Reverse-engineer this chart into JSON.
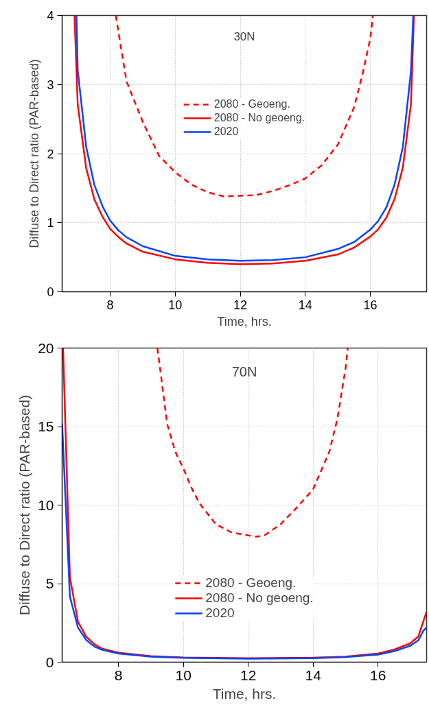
{
  "chart_data": [
    {
      "type": "line",
      "xlabel": "Time, hrs.",
      "ylabel": "Diffuse to Direct ratio (PAR-based)",
      "annotations": [
        "30N"
      ],
      "xlim": [
        6.52,
        17.73
      ],
      "ylim": [
        0,
        4
      ],
      "xticks": [
        8,
        10,
        12,
        14,
        16
      ],
      "yticks": [
        0,
        1,
        2,
        3,
        4
      ],
      "grid": true,
      "legend": "top",
      "series": [
        {
          "name": "2080 - Geoeng.",
          "color": "#ff0000",
          "line_style": "dashed",
          "x": [
            8.17,
            8.5,
            9,
            9.5,
            10,
            10.5,
            11,
            11.5,
            12,
            12.5,
            13,
            13.5,
            14,
            14.5,
            15,
            15.5,
            15.75,
            16,
            16.08
          ],
          "values": [
            4,
            3.05,
            2.46,
            1.97,
            1.73,
            1.55,
            1.44,
            1.38,
            1.39,
            1.4,
            1.46,
            1.54,
            1.64,
            1.83,
            2.13,
            2.67,
            3.13,
            3.67,
            4
          ]
        },
        {
          "name": "2080 - No geoeng.",
          "color": "#ff0000",
          "line_style": "solid",
          "x": [
            6.9,
            7.0,
            7.26,
            7.51,
            7.77,
            8.0,
            8.26,
            8.5,
            9,
            10,
            11,
            12,
            13,
            14,
            15,
            15.5,
            16,
            16.25,
            16.5,
            16.75,
            17,
            17.25,
            17.34
          ],
          "values": [
            4,
            2.71,
            1.79,
            1.34,
            1.08,
            0.91,
            0.79,
            0.7,
            0.58,
            0.47,
            0.42,
            0.4,
            0.41,
            0.45,
            0.54,
            0.64,
            0.8,
            0.91,
            1.08,
            1.35,
            1.8,
            2.72,
            4
          ]
        },
        {
          "name": "2020",
          "color": "#0044ff",
          "line_style": "solid",
          "x": [
            6.96,
            7.0,
            7.26,
            7.51,
            7.77,
            8.0,
            8.25,
            8.5,
            9,
            10,
            11,
            12,
            13,
            14,
            15,
            15.5,
            16,
            16.25,
            16.5,
            16.75,
            17,
            17.25,
            17.32
          ],
          "values": [
            4,
            3.21,
            2.1,
            1.55,
            1.23,
            1.03,
            0.89,
            0.79,
            0.66,
            0.52,
            0.47,
            0.45,
            0.46,
            0.5,
            0.62,
            0.72,
            0.9,
            1.03,
            1.23,
            1.56,
            2.1,
            3.2,
            4
          ]
        }
      ]
    },
    {
      "type": "line",
      "xlabel": "Time, hrs.",
      "ylabel": "Diffuse to Direct ratio (PAR-based)",
      "annotations": [
        "70N"
      ],
      "xlim": [
        6.26,
        17.5
      ],
      "ylim": [
        0,
        20
      ],
      "xticks": [
        8,
        10,
        12,
        14,
        16
      ],
      "yticks": [
        0,
        5,
        10,
        15,
        20
      ],
      "grid": true,
      "legend": "bottom",
      "series": [
        {
          "name": "2080 - Geoeng.",
          "color": "#ff0000",
          "line_style": "dashed",
          "x": [
            9.2,
            9.5,
            9.75,
            10,
            10.25,
            10.5,
            11,
            11.5,
            12,
            12.25,
            12.5,
            13,
            13.5,
            14,
            14.5,
            14.75,
            15,
            15.07
          ],
          "values": [
            20,
            15.17,
            13.4,
            12.33,
            11.1,
            10.1,
            8.78,
            8.25,
            8.07,
            7.99,
            8.07,
            8.78,
            9.85,
            11.0,
            13.4,
            15.5,
            18.7,
            20
          ]
        },
        {
          "name": "2080 - No geoeng.",
          "color": "#ff0000",
          "line_style": "solid",
          "x": [
            6.29,
            6.5,
            6.75,
            7.0,
            7.25,
            7.5,
            8,
            9,
            10,
            12,
            14,
            15,
            16,
            16.5,
            17,
            17.25,
            17.4,
            17.5
          ],
          "values": [
            20,
            5.41,
            2.57,
            1.63,
            1.15,
            0.85,
            0.6,
            0.38,
            0.3,
            0.25,
            0.28,
            0.35,
            0.55,
            0.8,
            1.2,
            1.65,
            2.6,
            3.2
          ]
        },
        {
          "name": "2020",
          "color": "#0044ff",
          "line_style": "solid",
          "x": [
            6.26,
            6.5,
            6.75,
            7.0,
            7.25,
            7.5,
            8,
            9,
            10,
            12,
            14,
            15,
            16,
            16.5,
            17,
            17.25,
            17.4,
            17.5
          ],
          "values": [
            15.2,
            4.17,
            2.2,
            1.42,
            1.0,
            0.78,
            0.55,
            0.35,
            0.27,
            0.22,
            0.25,
            0.32,
            0.48,
            0.7,
            1.05,
            1.4,
            2.0,
            2.2
          ]
        }
      ]
    }
  ]
}
